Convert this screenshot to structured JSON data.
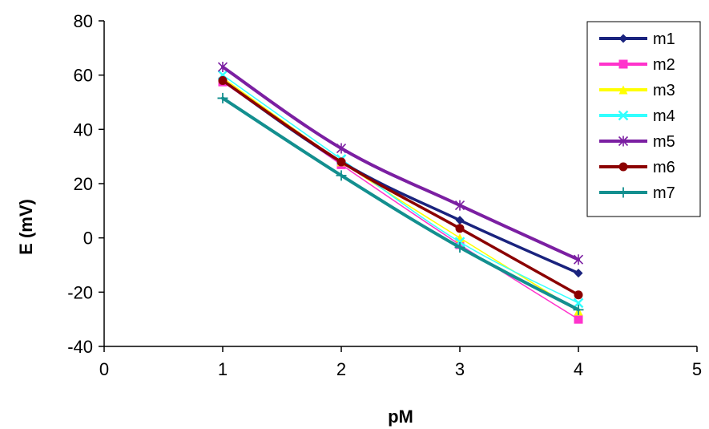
{
  "chart_data": {
    "type": "line",
    "xlabel": "pM",
    "ylabel": "E (mV)",
    "xlim": [
      0,
      5
    ],
    "ylim": [
      -40,
      80
    ],
    "xticks": [
      0,
      1,
      2,
      3,
      4,
      5
    ],
    "yticks": [
      -40,
      -20,
      0,
      20,
      40,
      60,
      80
    ],
    "grid": false,
    "legend_position": "top-right",
    "x": [
      1,
      2,
      3,
      4
    ],
    "series": [
      {
        "name": "m1",
        "color": "#1a237e",
        "marker": "diamond",
        "values": [
          58,
          28,
          6.5,
          -13
        ]
      },
      {
        "name": "m2",
        "color": "#ff33cc",
        "marker": "square",
        "values": [
          57.5,
          27,
          -2.5,
          -30
        ]
      },
      {
        "name": "m3",
        "color": "#ffff00",
        "marker": "triangle",
        "values": [
          59,
          28,
          0,
          -27
        ]
      },
      {
        "name": "m4",
        "color": "#33ffff",
        "marker": "x",
        "values": [
          60,
          29,
          -1.5,
          -24
        ]
      },
      {
        "name": "m5",
        "color": "#7b1fa2",
        "marker": "asterisk",
        "values": [
          63,
          33,
          12,
          -8
        ]
      },
      {
        "name": "m6",
        "color": "#8b0000",
        "marker": "circle",
        "values": [
          58,
          28,
          3.5,
          -21
        ]
      },
      {
        "name": "m7",
        "color": "#138f8f",
        "marker": "plus",
        "values": [
          51.5,
          23,
          -3.5,
          -26.5
        ]
      }
    ]
  }
}
